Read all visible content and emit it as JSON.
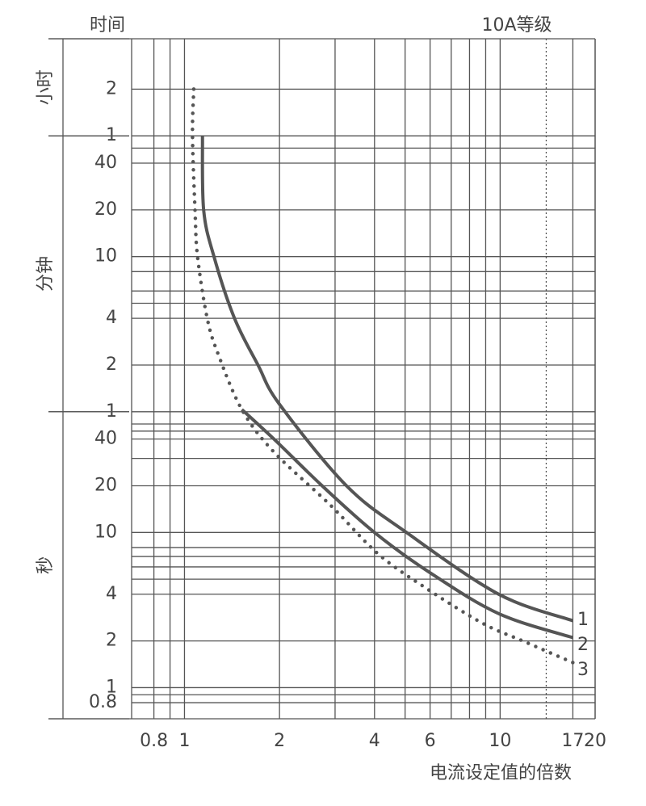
{
  "chart_data": {
    "type": "line",
    "title": "10A等级",
    "y_title": "时间",
    "x_title": "电流设定值的倍数",
    "y_unit_labels": [
      "小时",
      "分钟",
      "秒"
    ],
    "log_x": true,
    "log_y": true,
    "grid": true,
    "xlim": [
      0.68,
      20
    ],
    "ylim": [
      0.63,
      15200
    ],
    "xticks": [
      0.8,
      1,
      2,
      4,
      6,
      10,
      17,
      20
    ],
    "x_minor_grid": [
      0.9,
      3,
      5,
      7,
      8,
      9
    ],
    "dotted_xline": 14,
    "yticks": [
      {
        "value": 7200,
        "label": "2"
      },
      {
        "value": 3600,
        "label": "1"
      },
      {
        "value": 2400,
        "label": "40"
      },
      {
        "value": 1200,
        "label": "20"
      },
      {
        "value": 600,
        "label": "10"
      },
      {
        "value": 240,
        "label": "4"
      },
      {
        "value": 120,
        "label": "2"
      },
      {
        "value": 60,
        "label": "1"
      },
      40,
      20,
      10,
      4,
      2,
      1,
      0.8
    ],
    "y_minor_grid": [
      3000,
      480,
      360,
      300,
      50,
      45,
      30,
      8,
      7,
      6,
      5,
      0.9
    ],
    "series": [
      {
        "name": "1",
        "color": "#555555",
        "style": "solid",
        "x": [
          1.14,
          1.15,
          1.24,
          1.44,
          1.71,
          2.0,
          3.26,
          5.05,
          9.9,
          17
        ],
        "values": [
          3600,
          1200,
          600,
          240,
          120,
          67,
          20,
          10,
          4,
          2.7
        ]
      },
      {
        "name": "2",
        "color": "#555555",
        "style": "solid",
        "x": [
          1.52,
          1.92,
          2.73,
          4.0,
          6.0,
          9.9,
          17
        ],
        "values": [
          62,
          40,
          20,
          10,
          5.5,
          3,
          2.1
        ]
      },
      {
        "name": "3",
        "color": "#555555",
        "style": "dotted",
        "x": [
          1.07,
          1.06,
          1.08,
          1.1,
          1.18,
          1.28,
          1.52,
          1.92,
          2.9,
          4.1,
          5.8,
          8.8,
          11.8,
          17
        ],
        "values": [
          7200,
          3600,
          1200,
          600,
          240,
          140,
          62,
          33,
          15,
          7.3,
          4.4,
          2.6,
          2.0,
          1.45
        ]
      }
    ]
  }
}
